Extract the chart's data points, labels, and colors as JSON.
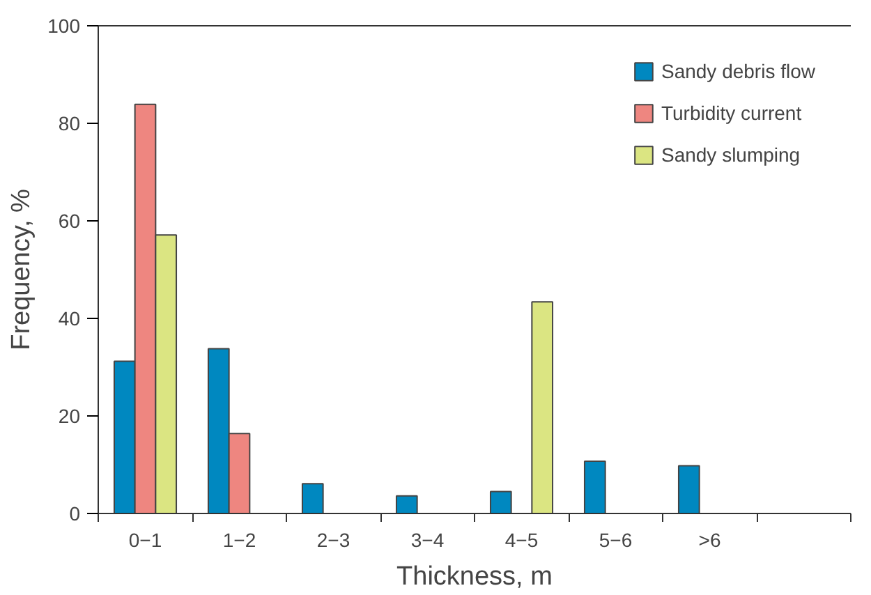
{
  "chart_data": {
    "type": "bar",
    "xlabel": "Thickness, m",
    "ylabel": "Frequency, %",
    "categories": [
      "0−1",
      "1−2",
      "2−3",
      "3−4",
      "4−5",
      "5−6",
      ">6",
      null
    ],
    "series": [
      {
        "name": "Sandy debris flow",
        "color": "#0088c0",
        "values": [
          31.2,
          33.8,
          6.1,
          3.6,
          4.5,
          10.7,
          9.8,
          null
        ]
      },
      {
        "name": "Turbidity current",
        "color": "#ee8680",
        "values": [
          83.9,
          16.4,
          null,
          null,
          null,
          null,
          null,
          null
        ]
      },
      {
        "name": "Sandy slumping",
        "color": "#dbe582",
        "values": [
          57.1,
          null,
          null,
          null,
          43.4,
          null,
          null,
          null
        ]
      }
    ],
    "ylim": [
      0,
      100
    ],
    "yticks": [
      0,
      20,
      40,
      60,
      80,
      100
    ],
    "grid": false,
    "legend": "top right"
  }
}
